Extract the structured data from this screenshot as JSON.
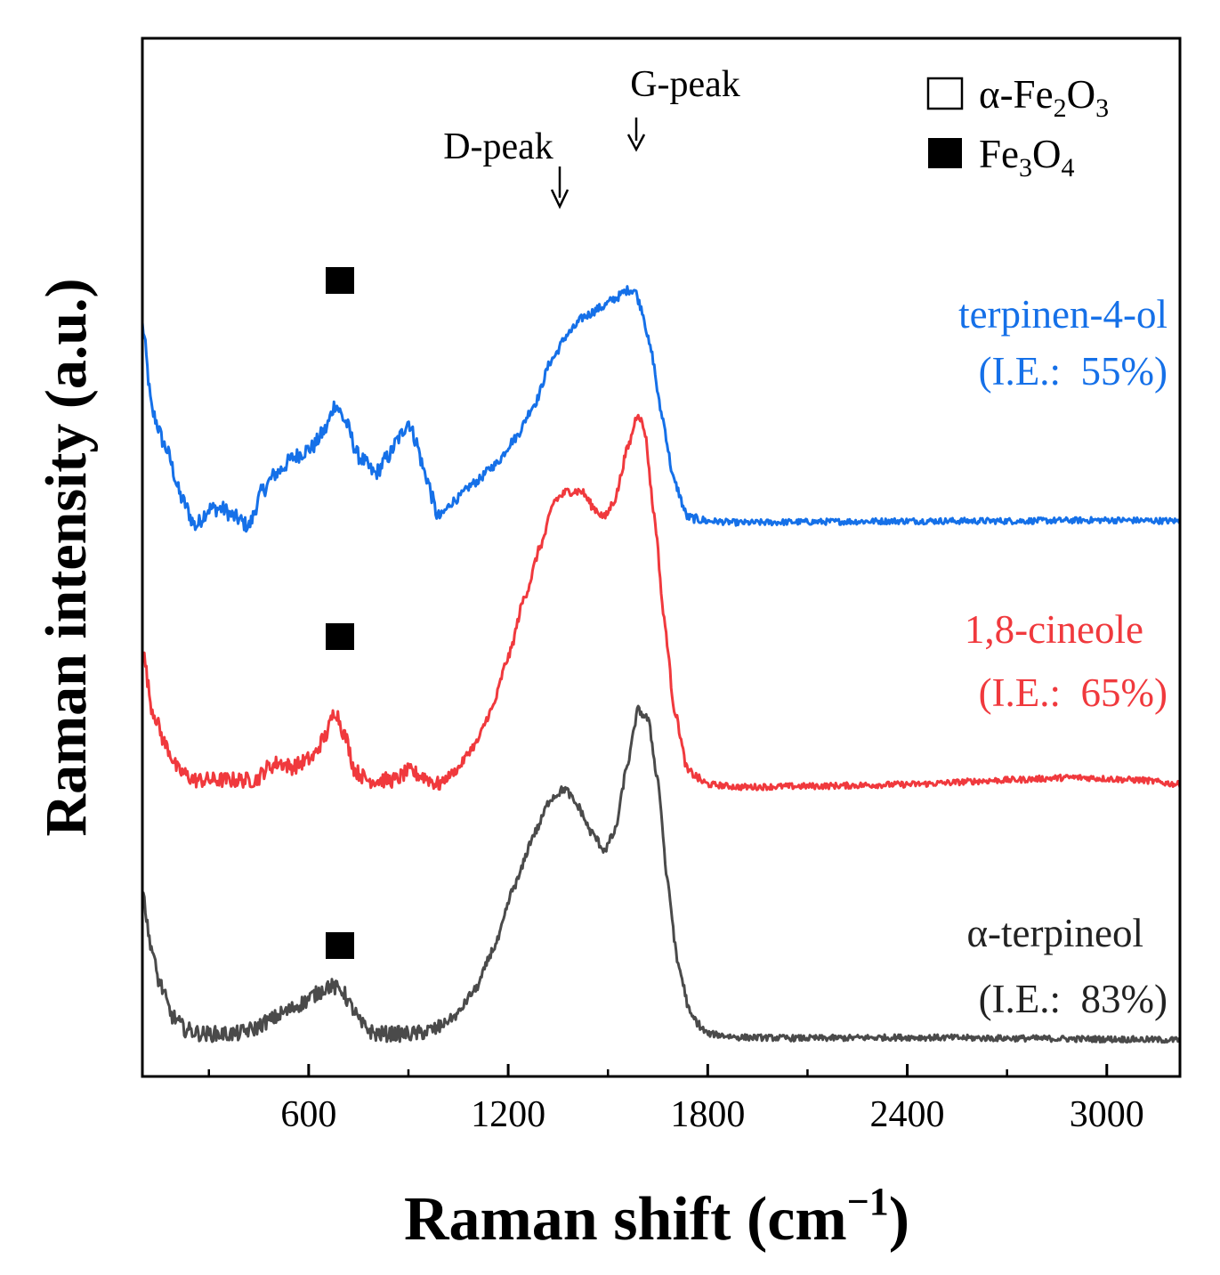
{
  "chart_data": {
    "type": "line",
    "xlabel": "Raman shift (cm",
    "xlabel_sup": "−1",
    "xlabel_close": ")",
    "ylabel": "Raman intensity (a.u.)",
    "xlim": [
      100,
      3220
    ],
    "ylim": [
      0,
      100
    ],
    "x_ticks": [
      600,
      1200,
      1800,
      2400,
      3000
    ],
    "x_minor_ticks": [
      300,
      900,
      1500,
      2100,
      2700
    ],
    "grid": false,
    "legend": {
      "position": "top-right",
      "items": [
        {
          "marker": "open-square",
          "label": "α-Fe",
          "sub1": "2",
          "mid": "O",
          "sub2": "3"
        },
        {
          "marker": "filled-square",
          "label": "Fe",
          "sub1": "3",
          "mid": "O",
          "sub2": "4"
        }
      ]
    },
    "annotations": [
      {
        "text": "D-peak",
        "x": 1350
      },
      {
        "text": "G-peak",
        "x": 1590
      }
    ],
    "series": [
      {
        "name": "terpinen-4-ol",
        "note": "(I.E.:  55%)",
        "color": "#1570e8",
        "marker_x": 680,
        "points": [
          [
            100,
            82
          ],
          [
            130,
            72
          ],
          [
            170,
            68
          ],
          [
            220,
            62
          ],
          [
            260,
            59
          ],
          [
            300,
            61
          ],
          [
            340,
            61
          ],
          [
            380,
            60
          ],
          [
            420,
            59
          ],
          [
            460,
            63
          ],
          [
            500,
            65
          ],
          [
            560,
            67
          ],
          [
            610,
            68
          ],
          [
            650,
            70
          ],
          [
            680,
            73
          ],
          [
            710,
            71
          ],
          [
            750,
            67
          ],
          [
            800,
            65
          ],
          [
            840,
            67
          ],
          [
            870,
            69
          ],
          [
            900,
            71
          ],
          [
            920,
            69
          ],
          [
            950,
            65
          ],
          [
            990,
            60
          ],
          [
            1040,
            62
          ],
          [
            1100,
            64
          ],
          [
            1160,
            66
          ],
          [
            1220,
            69
          ],
          [
            1280,
            73
          ],
          [
            1330,
            78
          ],
          [
            1380,
            81
          ],
          [
            1430,
            83
          ],
          [
            1480,
            84
          ],
          [
            1520,
            85
          ],
          [
            1560,
            86
          ],
          [
            1580,
            86
          ],
          [
            1600,
            84
          ],
          [
            1630,
            79
          ],
          [
            1660,
            72
          ],
          [
            1700,
            64
          ],
          [
            1740,
            60
          ],
          [
            1800,
            59.6
          ],
          [
            1900,
            59.4
          ],
          [
            2100,
            59.5
          ],
          [
            2400,
            59.6
          ],
          [
            2700,
            59.6
          ],
          [
            3000,
            59.7
          ],
          [
            3220,
            59.6
          ]
        ]
      },
      {
        "name": "1,8-cineole",
        "note": "(I.E.:  65%)",
        "color": "#f0393d",
        "marker_x": 680,
        "points": [
          [
            100,
            45
          ],
          [
            130,
            38
          ],
          [
            170,
            34
          ],
          [
            210,
            31
          ],
          [
            260,
            30
          ],
          [
            300,
            30
          ],
          [
            350,
            30
          ],
          [
            400,
            30
          ],
          [
            440,
            30
          ],
          [
            480,
            31.5
          ],
          [
            510,
            32
          ],
          [
            550,
            31.5
          ],
          [
            610,
            32.5
          ],
          [
            650,
            35
          ],
          [
            680,
            38
          ],
          [
            710,
            35
          ],
          [
            740,
            31
          ],
          [
            780,
            30
          ],
          [
            820,
            30
          ],
          [
            860,
            30
          ],
          [
            900,
            31
          ],
          [
            940,
            30.5
          ],
          [
            990,
            29.5
          ],
          [
            1040,
            31
          ],
          [
            1100,
            34
          ],
          [
            1150,
            38
          ],
          [
            1200,
            44
          ],
          [
            1250,
            51
          ],
          [
            1300,
            57
          ],
          [
            1340,
            62
          ],
          [
            1380,
            63
          ],
          [
            1420,
            63
          ],
          [
            1460,
            61
          ],
          [
            1490,
            60
          ],
          [
            1520,
            62
          ],
          [
            1560,
            68
          ],
          [
            1590,
            72
          ],
          [
            1610,
            70
          ],
          [
            1640,
            60
          ],
          [
            1670,
            48
          ],
          [
            1700,
            38
          ],
          [
            1740,
            31
          ],
          [
            1800,
            29.5
          ],
          [
            1900,
            29.2
          ],
          [
            2100,
            29.3
          ],
          [
            2400,
            29.5
          ],
          [
            2700,
            30
          ],
          [
            2900,
            30.3
          ],
          [
            3100,
            30
          ],
          [
            3220,
            29.5
          ]
        ]
      },
      {
        "name": "α-terpineol",
        "note": "(I.E.:  83%)",
        "color": "#4a4a4a",
        "marker_x": 680,
        "points": [
          [
            100,
            18
          ],
          [
            120,
            12
          ],
          [
            150,
            7
          ],
          [
            190,
            3
          ],
          [
            230,
            1.5
          ],
          [
            280,
            1
          ],
          [
            330,
            1
          ],
          [
            380,
            1
          ],
          [
            430,
            1.5
          ],
          [
            480,
            2.5
          ],
          [
            530,
            3.5
          ],
          [
            580,
            4.5
          ],
          [
            620,
            5.5
          ],
          [
            660,
            6.5
          ],
          [
            700,
            6
          ],
          [
            730,
            4
          ],
          [
            760,
            2
          ],
          [
            800,
            1
          ],
          [
            860,
            1
          ],
          [
            920,
            1
          ],
          [
            980,
            1.5
          ],
          [
            1040,
            3
          ],
          [
            1100,
            6
          ],
          [
            1160,
            11
          ],
          [
            1220,
            18
          ],
          [
            1280,
            24
          ],
          [
            1330,
            28
          ],
          [
            1370,
            29
          ],
          [
            1410,
            27
          ],
          [
            1450,
            24
          ],
          [
            1490,
            22
          ],
          [
            1520,
            24
          ],
          [
            1560,
            32
          ],
          [
            1590,
            38
          ],
          [
            1620,
            37
          ],
          [
            1650,
            30
          ],
          [
            1680,
            18
          ],
          [
            1710,
            9
          ],
          [
            1750,
            3
          ],
          [
            1800,
            1
          ],
          [
            1900,
            0.6
          ],
          [
            2100,
            0.5
          ],
          [
            2400,
            0.6
          ],
          [
            2700,
            0.5
          ],
          [
            3000,
            0.4
          ],
          [
            3220,
            0.3
          ]
        ]
      }
    ]
  }
}
